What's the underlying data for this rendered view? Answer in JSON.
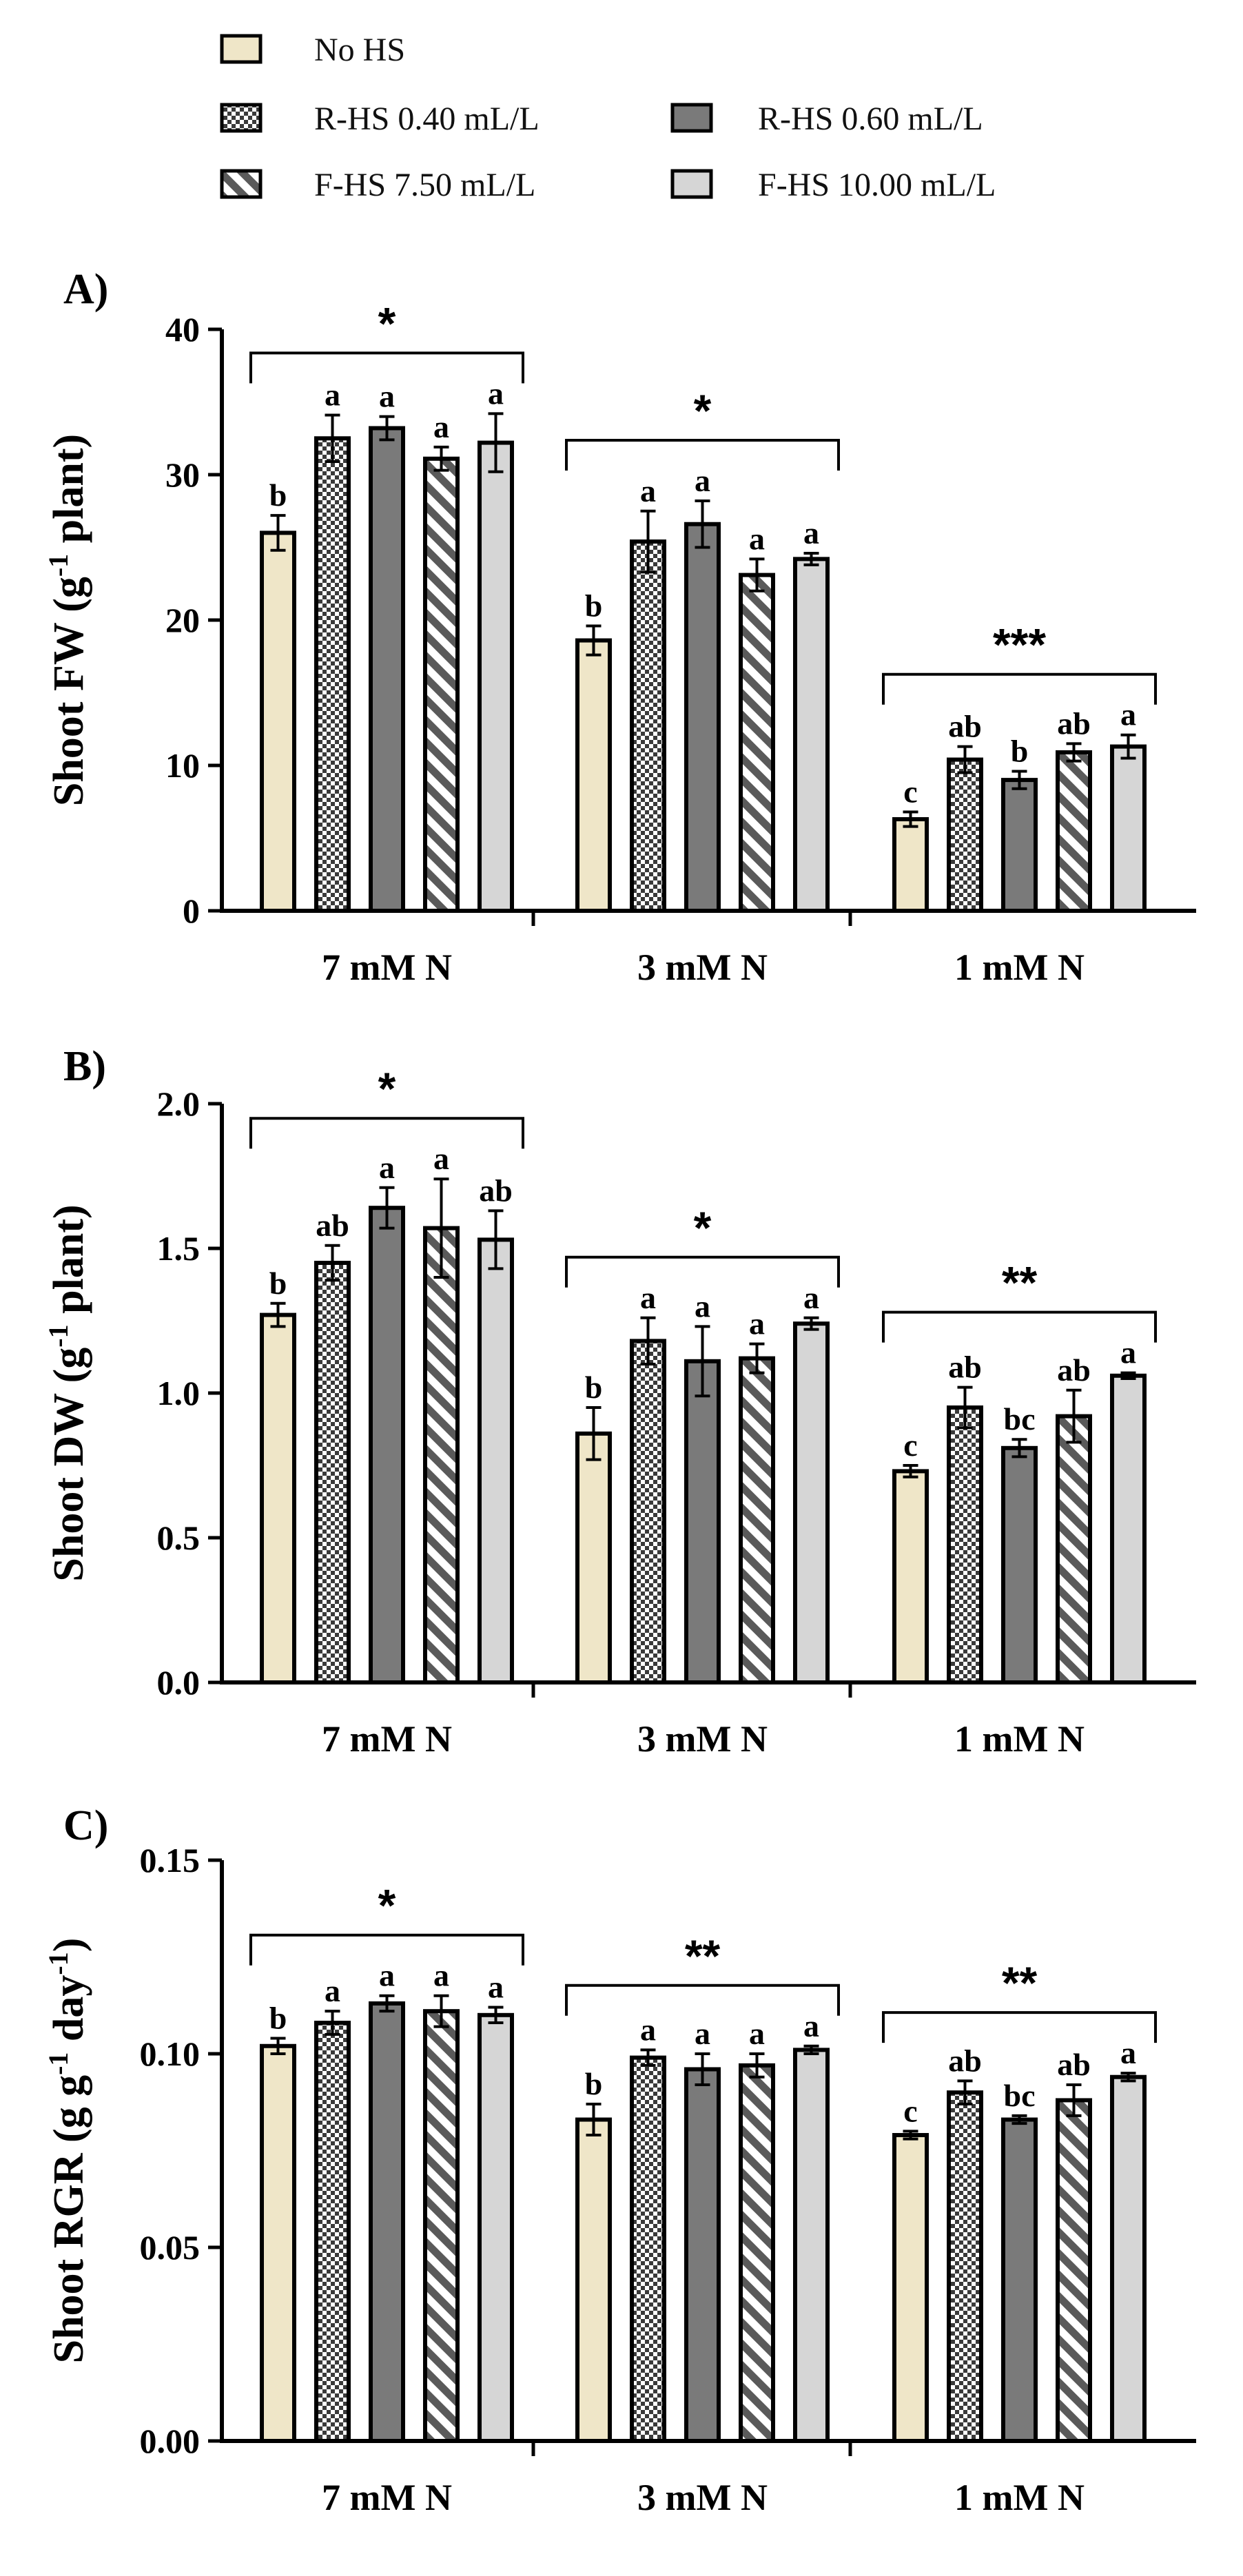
{
  "colors": {
    "no_hs": "#efe6c8",
    "r_hs_040": "#6b6b6b",
    "r_hs_060": "#7a7a7a",
    "f_hs_750": "#7f7f7f",
    "f_hs_1000": "#d6d6d6",
    "axis": "#000000"
  },
  "legend": [
    {
      "label": "No HS",
      "pattern": "solid-cream"
    },
    {
      "label": "R-HS 0.40 mL/L",
      "pattern": "checker"
    },
    {
      "label": "R-HS 0.60 mL/L",
      "pattern": "solid-darkgray"
    },
    {
      "label": "F-HS 7.50 mL/L",
      "pattern": "diagonal"
    },
    {
      "label": "F-HS 10.00 mL/L",
      "pattern": "solid-lightgray"
    }
  ],
  "chart_data": [
    {
      "type": "bar",
      "panel": "A)",
      "ylabel_main": "Shoot FW (g",
      "ylabel_sup": "-1",
      "ylabel_tail": " plant)",
      "ylim": [
        0,
        40
      ],
      "yticks": [
        0,
        10,
        20,
        30,
        40
      ],
      "ytick_labels": [
        "0",
        "10",
        "20",
        "30",
        "40"
      ],
      "categories": [
        "7 mM N",
        "3 mM N",
        "1 mM N"
      ],
      "series": [
        {
          "name": "No HS",
          "values": [
            26.0,
            18.6,
            6.3
          ],
          "errors": [
            1.2,
            1.0,
            0.5
          ],
          "letters": [
            "b",
            "b",
            "c"
          ]
        },
        {
          "name": "R-HS 0.40 mL/L",
          "values": [
            32.5,
            25.4,
            10.4
          ],
          "errors": [
            1.6,
            2.1,
            0.9
          ],
          "letters": [
            "a",
            "a",
            "ab"
          ]
        },
        {
          "name": "R-HS 0.60 mL/L",
          "values": [
            33.2,
            26.6,
            9.0
          ],
          "errors": [
            0.8,
            1.6,
            0.6
          ],
          "letters": [
            "a",
            "a",
            "b"
          ]
        },
        {
          "name": "F-HS 7.50 mL/L",
          "values": [
            31.1,
            23.1,
            10.9
          ],
          "errors": [
            0.8,
            1.1,
            0.6
          ],
          "letters": [
            "a",
            "a",
            "ab"
          ]
        },
        {
          "name": "F-HS 10.00 mL/L",
          "values": [
            32.2,
            24.2,
            11.3
          ],
          "errors": [
            2.0,
            0.4,
            0.8
          ],
          "letters": [
            "a",
            "a",
            "a"
          ]
        }
      ],
      "significance": [
        "*",
        "*",
        "***"
      ]
    },
    {
      "type": "bar",
      "panel": "B)",
      "ylabel_main": "Shoot DW (g",
      "ylabel_sup": "-1",
      "ylabel_tail": " plant)",
      "ylim": [
        0,
        2.0
      ],
      "yticks": [
        0,
        0.5,
        1.0,
        1.5,
        2.0
      ],
      "ytick_labels": [
        "0.0",
        "0.5",
        "1.0",
        "1.5",
        "2.0"
      ],
      "categories": [
        "7 mM N",
        "3 mM N",
        "1 mM N"
      ],
      "series": [
        {
          "name": "No HS",
          "values": [
            1.27,
            0.86,
            0.73
          ],
          "errors": [
            0.04,
            0.09,
            0.02
          ],
          "letters": [
            "b",
            "b",
            "c"
          ]
        },
        {
          "name": "R-HS 0.40 mL/L",
          "values": [
            1.45,
            1.18,
            0.95
          ],
          "errors": [
            0.06,
            0.08,
            0.07
          ],
          "letters": [
            "ab",
            "a",
            "ab"
          ]
        },
        {
          "name": "R-HS 0.60 mL/L",
          "values": [
            1.64,
            1.11,
            0.81
          ],
          "errors": [
            0.07,
            0.12,
            0.03
          ],
          "letters": [
            "a",
            "a",
            "bc"
          ]
        },
        {
          "name": "F-HS 7.50 mL/L",
          "values": [
            1.57,
            1.12,
            0.92
          ],
          "errors": [
            0.17,
            0.05,
            0.09
          ],
          "letters": [
            "a",
            "a",
            "ab"
          ]
        },
        {
          "name": "F-HS 10.00 mL/L",
          "values": [
            1.53,
            1.24,
            1.06
          ],
          "errors": [
            0.1,
            0.02,
            0.01
          ],
          "letters": [
            "ab",
            "a",
            "a"
          ]
        }
      ],
      "significance": [
        "*",
        "*",
        "**"
      ]
    },
    {
      "type": "bar",
      "panel": "C)",
      "ylabel_main": "Shoot RGR (g g",
      "ylabel_sup": "-1",
      "ylabel_mid": " day",
      "ylabel_sup2": "-1",
      "ylabel_tail": ")",
      "ylim": [
        0,
        0.15
      ],
      "yticks": [
        0,
        0.05,
        0.1,
        0.15
      ],
      "ytick_labels": [
        "0.00",
        "0.05",
        "0.10",
        "0.15"
      ],
      "categories": [
        "7 mM N",
        "3 mM N",
        "1 mM N"
      ],
      "series": [
        {
          "name": "No HS",
          "values": [
            0.102,
            0.083,
            0.079
          ],
          "errors": [
            0.002,
            0.004,
            0.001
          ],
          "letters": [
            "b",
            "b",
            "c"
          ]
        },
        {
          "name": "R-HS 0.40 mL/L",
          "values": [
            0.108,
            0.099,
            0.09
          ],
          "errors": [
            0.003,
            0.002,
            0.003
          ],
          "letters": [
            "a",
            "a",
            "ab"
          ]
        },
        {
          "name": "R-HS 0.60 mL/L",
          "values": [
            0.113,
            0.096,
            0.083
          ],
          "errors": [
            0.002,
            0.004,
            0.001
          ],
          "letters": [
            "a",
            "a",
            "bc"
          ]
        },
        {
          "name": "F-HS 7.50 mL/L",
          "values": [
            0.111,
            0.097,
            0.088
          ],
          "errors": [
            0.004,
            0.003,
            0.004
          ],
          "letters": [
            "a",
            "a",
            "ab"
          ]
        },
        {
          "name": "F-HS 10.00 mL/L",
          "values": [
            0.11,
            0.101,
            0.094
          ],
          "errors": [
            0.002,
            0.001,
            0.001
          ],
          "letters": [
            "a",
            "a",
            "a"
          ]
        }
      ],
      "significance": [
        "*",
        "**",
        "**"
      ]
    }
  ]
}
